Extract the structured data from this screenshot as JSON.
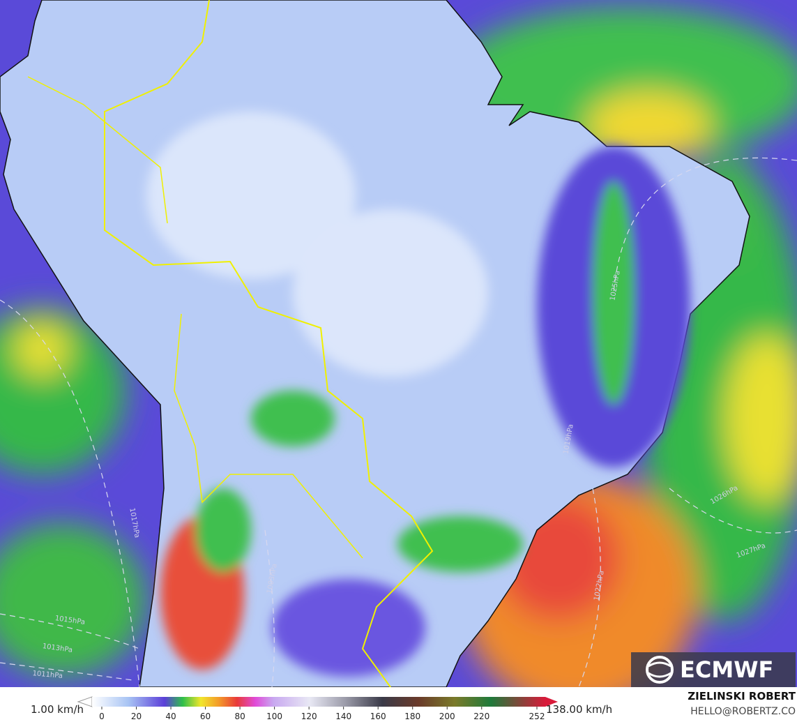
{
  "logo": {
    "text": "ECMWF"
  },
  "colorbar": {
    "min_label": "1.00 km/h",
    "max_label": "138.00 km/h",
    "ticks": [
      0,
      20,
      40,
      60,
      80,
      100,
      120,
      140,
      160,
      180,
      200,
      220,
      252
    ]
  },
  "credits": {
    "author": "ZIELINSKI ROBERT",
    "contact": "HELLO@ROBERTZ.CO"
  },
  "isobars": [
    "1017hPa",
    "1015hPa",
    "1013hPa",
    "1011hPa",
    "1003hPa",
    "1022hPa",
    "1027hPa",
    "1026hPa",
    "1019hPa",
    "1025hPa"
  ]
}
